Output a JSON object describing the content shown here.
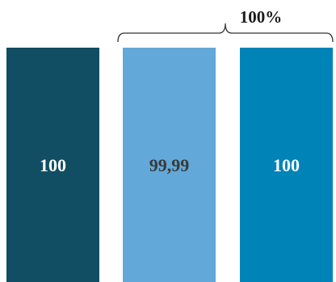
{
  "chart_data": {
    "type": "bar",
    "categories": [
      "",
      "",
      ""
    ],
    "values": [
      100,
      99.99,
      100
    ],
    "data_labels": [
      "100",
      "99,99",
      "100"
    ],
    "bar_colors": [
      "#114e63",
      "#62a8d8",
      "#0084b8"
    ],
    "label_colors": [
      "#ffffff",
      "#3a3a3a",
      "#ffffff"
    ],
    "ylim": [
      0,
      100
    ],
    "grid": false,
    "annotation": {
      "text": "100%",
      "spans_categories": [
        1,
        2
      ]
    }
  }
}
